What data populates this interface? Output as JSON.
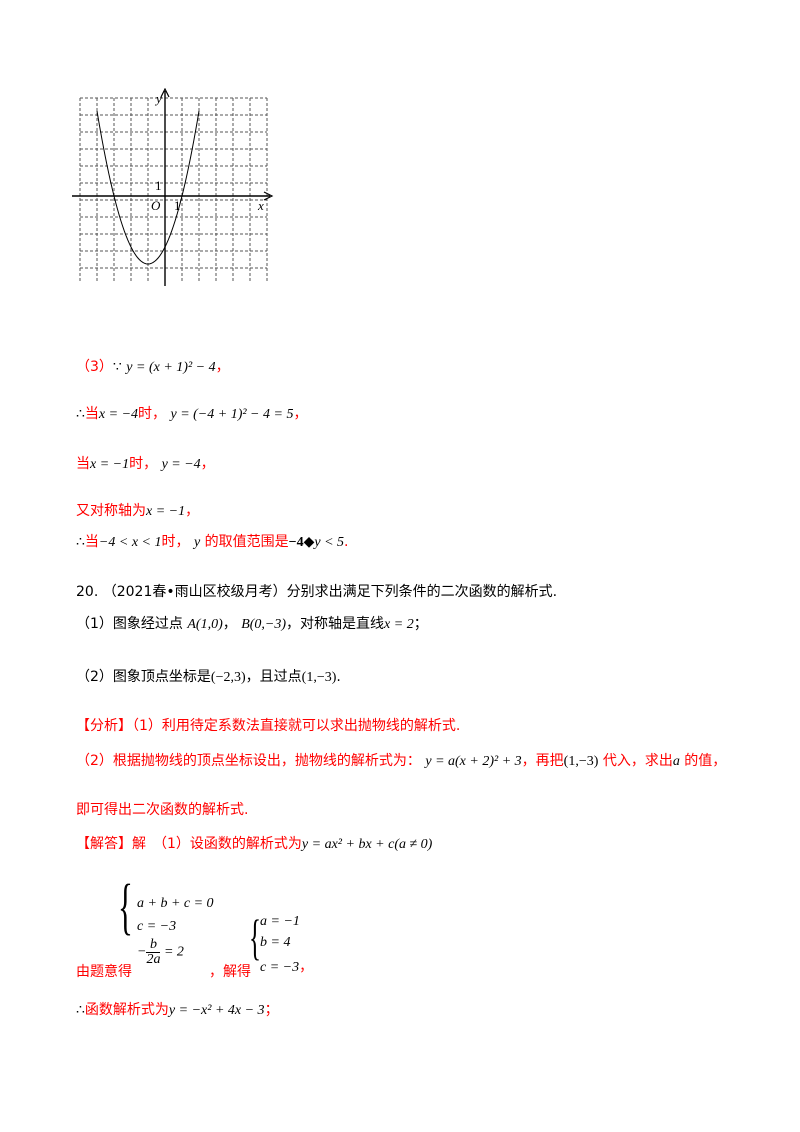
{
  "graph": {
    "y_label": "y",
    "x_label": "x",
    "origin_label": "O",
    "x_tick": "1",
    "y_tick": "1",
    "parabola": {
      "a": 1,
      "h": -1,
      "k": -4,
      "x_range": [
        -4,
        2
      ]
    },
    "grid": {
      "x_min": -5,
      "x_max": 6,
      "y_min": -5,
      "y_max": 6
    }
  },
  "part3": {
    "l1_pre": "（3）",
    "l1_because": "∵",
    "l1_math": "y = (x + 1)² − 4",
    "l1_post": "，",
    "l2_therefore": "∴",
    "l2_when": "当",
    "l2_cond": "x = −4",
    "l2_time": "时，",
    "l2_math": "y = (−4 + 1)² − 4 = 5",
    "l2_post": "，",
    "l3_when": "当",
    "l3_cond": "x = −1",
    "l3_time": "时，",
    "l3_math": "y = −4",
    "l3_post": "，",
    "l4_text": "又对称轴为",
    "l4_math": "x = −1",
    "l4_post": "，",
    "l5_therefore": "∴",
    "l5_when": "当",
    "l5_cond": "−4 < x < 1",
    "l5_time": "时，",
    "l5_y": "y",
    "l5_text": "的取值范围是",
    "l5_range_a": "−4",
    "l5_range_b": "y < 5",
    "l5_post": "."
  },
  "q20": {
    "number": "20.",
    "source": "（2021春•雨山区校级月考）分别求出满足下列条件的二次函数的解析式.",
    "c1_pre": "（1）图象经过点",
    "c1_a": "A(1,0)",
    "c1_sep": "，",
    "c1_b": "B(0,−3)",
    "c1_mid": "，对称轴是直线",
    "c1_x": "x = 2",
    "c1_post": "；",
    "c2_pre": "（2）图象顶点坐标是",
    "c2_v": "(−2,3)",
    "c2_mid": "，且过点",
    "c2_p": "(1,−3)",
    "c2_post": "."
  },
  "analysis": {
    "tag": "【分析】",
    "l1": "（1）利用待定系数法直接就可以求出抛物线的解析式.",
    "l2_pre": "（2）根据抛物线的顶点坐标设出，抛物线的解析式为：",
    "l2_math": "y = a(x + 2)² + 3",
    "l2_mid": "，再把",
    "l2_pt": "(1,−3)",
    "l2_mid2": "代入，求出",
    "l2_a": "a",
    "l2_post": "的值，",
    "l3": "即可得出二次函数的解析式."
  },
  "answer": {
    "tag": "【解答】",
    "l1_text": "解　（1）设函数的解析式为",
    "l1_math": "y = ax² + bx + c(a ≠ 0)",
    "sys1": [
      "a + b + c = 0",
      "c = −3"
    ],
    "frac_num": "b",
    "frac_den": "2a",
    "frac_tail": "= 2",
    "by_text": "由题意得",
    "solve_text": "，解得",
    "sys2": [
      "a = −1",
      "b = 4",
      "c = −3"
    ],
    "sys2_post": "，",
    "l_final_therefore": "∴",
    "l_final_text": "函数解析式为",
    "l_final_math": "y = −x² + 4x − 3",
    "l_final_post": "；"
  }
}
